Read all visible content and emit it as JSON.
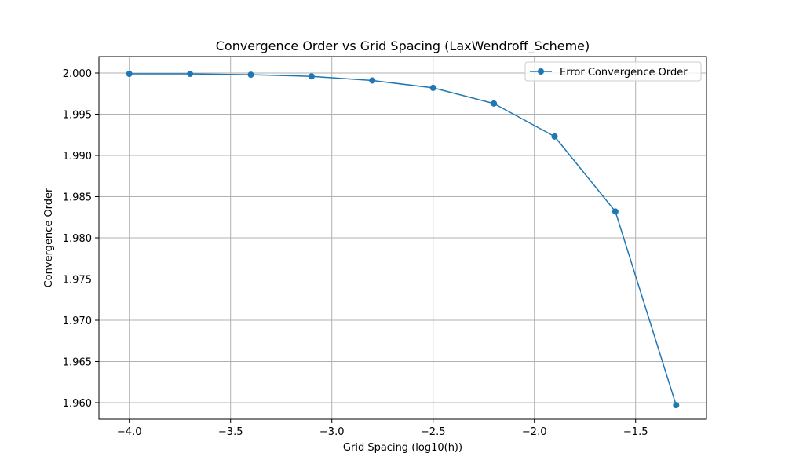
{
  "chart_data": {
    "type": "line",
    "title": "Convergence Order vs Grid Spacing (LaxWendroff_Scheme)",
    "xlabel": "Grid Spacing (log10(h))",
    "ylabel": "Convergence Order",
    "xlim": [
      -4.15,
      -1.15
    ],
    "ylim": [
      1.958,
      2.002
    ],
    "xticks": [
      -4.0,
      -3.5,
      -3.0,
      -2.5,
      -2.0,
      -1.5
    ],
    "xtick_labels": [
      "−4.0",
      "−3.5",
      "−3.0",
      "−2.5",
      "−2.0",
      "−1.5"
    ],
    "yticks": [
      1.96,
      1.965,
      1.97,
      1.975,
      1.98,
      1.985,
      1.99,
      1.995,
      2.0
    ],
    "ytick_labels": [
      "1.960",
      "1.965",
      "1.970",
      "1.975",
      "1.980",
      "1.985",
      "1.990",
      "1.995",
      "2.000"
    ],
    "grid": true,
    "legend_position": "top-right",
    "series": [
      {
        "name": "Error Convergence Order",
        "color": "#1f77b4",
        "marker": "circle",
        "x": [
          -4.0,
          -3.7,
          -3.4,
          -3.1,
          -2.8,
          -2.5,
          -2.2,
          -1.9,
          -1.6,
          -1.3
        ],
        "y": [
          1.9999,
          1.9999,
          1.9998,
          1.9996,
          1.9991,
          1.9982,
          1.9963,
          1.9923,
          1.9832,
          1.9597
        ]
      }
    ]
  }
}
